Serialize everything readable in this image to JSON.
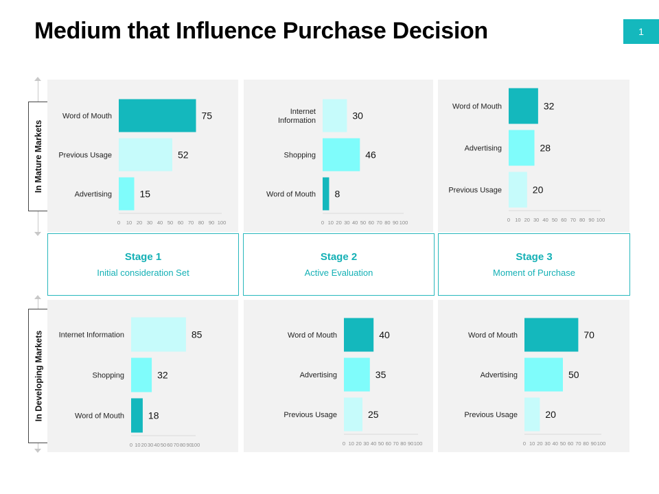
{
  "title": "Medium that Influence Purchase Decision",
  "page_number": "1",
  "row_labels": [
    "In Mature Markets",
    "In Developing Markets"
  ],
  "stages": [
    {
      "title": "Stage 1",
      "subtitle": "Initial consideration Set"
    },
    {
      "title": "Stage 2",
      "subtitle": "Active Evaluation"
    },
    {
      "title": "Stage 3",
      "subtitle": "Moment of Purchase"
    }
  ],
  "colors": {
    "dark": "#14b8bd",
    "mid": "#7ffcfb",
    "light": "#c6fbfb",
    "accent": "#14b8bd",
    "panel_bg": "#f2f2f2"
  },
  "chart_data": [
    {
      "type": "bar",
      "orientation": "horizontal",
      "categories": [
        "Word of Mouth",
        "Previous Usage",
        "Advertising"
      ],
      "values": [
        75,
        52,
        15
      ],
      "xlim": [
        0,
        100
      ],
      "xticks": [
        0,
        10,
        20,
        30,
        40,
        50,
        60,
        70,
        80,
        90,
        100
      ],
      "bar_colors": [
        "dark",
        "light",
        "mid"
      ]
    },
    {
      "type": "bar",
      "orientation": "horizontal",
      "categories": [
        "Internet\nInformation",
        "Shopping",
        "Word of Mouth"
      ],
      "values": [
        30,
        46,
        8
      ],
      "xlim": [
        0,
        100
      ],
      "xticks": [
        0,
        10,
        20,
        30,
        40,
        50,
        60,
        70,
        80,
        90,
        100
      ],
      "bar_colors": [
        "light",
        "mid",
        "dark"
      ]
    },
    {
      "type": "bar",
      "orientation": "horizontal",
      "categories": [
        "Word of Mouth",
        "Advertising",
        "Previous Usage"
      ],
      "values": [
        32,
        28,
        20
      ],
      "xlim": [
        0,
        100
      ],
      "xticks": [
        0,
        10,
        20,
        30,
        40,
        50,
        60,
        70,
        80,
        90,
        100
      ],
      "bar_colors": [
        "dark",
        "mid",
        "light"
      ]
    },
    {
      "type": "bar",
      "orientation": "horizontal",
      "categories": [
        "Internet Information",
        "Shopping",
        "Word of Mouth"
      ],
      "values": [
        85,
        32,
        18
      ],
      "xlim": [
        0,
        100
      ],
      "xticks": [
        0,
        10,
        20,
        30,
        40,
        50,
        60,
        70,
        80,
        90,
        100
      ],
      "bar_colors": [
        "light",
        "mid",
        "dark"
      ]
    },
    {
      "type": "bar",
      "orientation": "horizontal",
      "categories": [
        "Word of Mouth",
        "Advertising",
        "Previous Usage"
      ],
      "values": [
        40,
        35,
        25
      ],
      "xlim": [
        0,
        100
      ],
      "xticks": [
        0,
        10,
        20,
        30,
        40,
        50,
        60,
        70,
        80,
        90,
        100
      ],
      "bar_colors": [
        "dark",
        "mid",
        "light"
      ]
    },
    {
      "type": "bar",
      "orientation": "horizontal",
      "categories": [
        "Word of Mouth",
        "Advertising",
        "Previous Usage"
      ],
      "values": [
        70,
        50,
        20
      ],
      "xlim": [
        0,
        100
      ],
      "xticks": [
        0,
        10,
        20,
        30,
        40,
        50,
        60,
        70,
        80,
        90,
        100
      ],
      "bar_colors": [
        "dark",
        "mid",
        "light"
      ]
    }
  ]
}
